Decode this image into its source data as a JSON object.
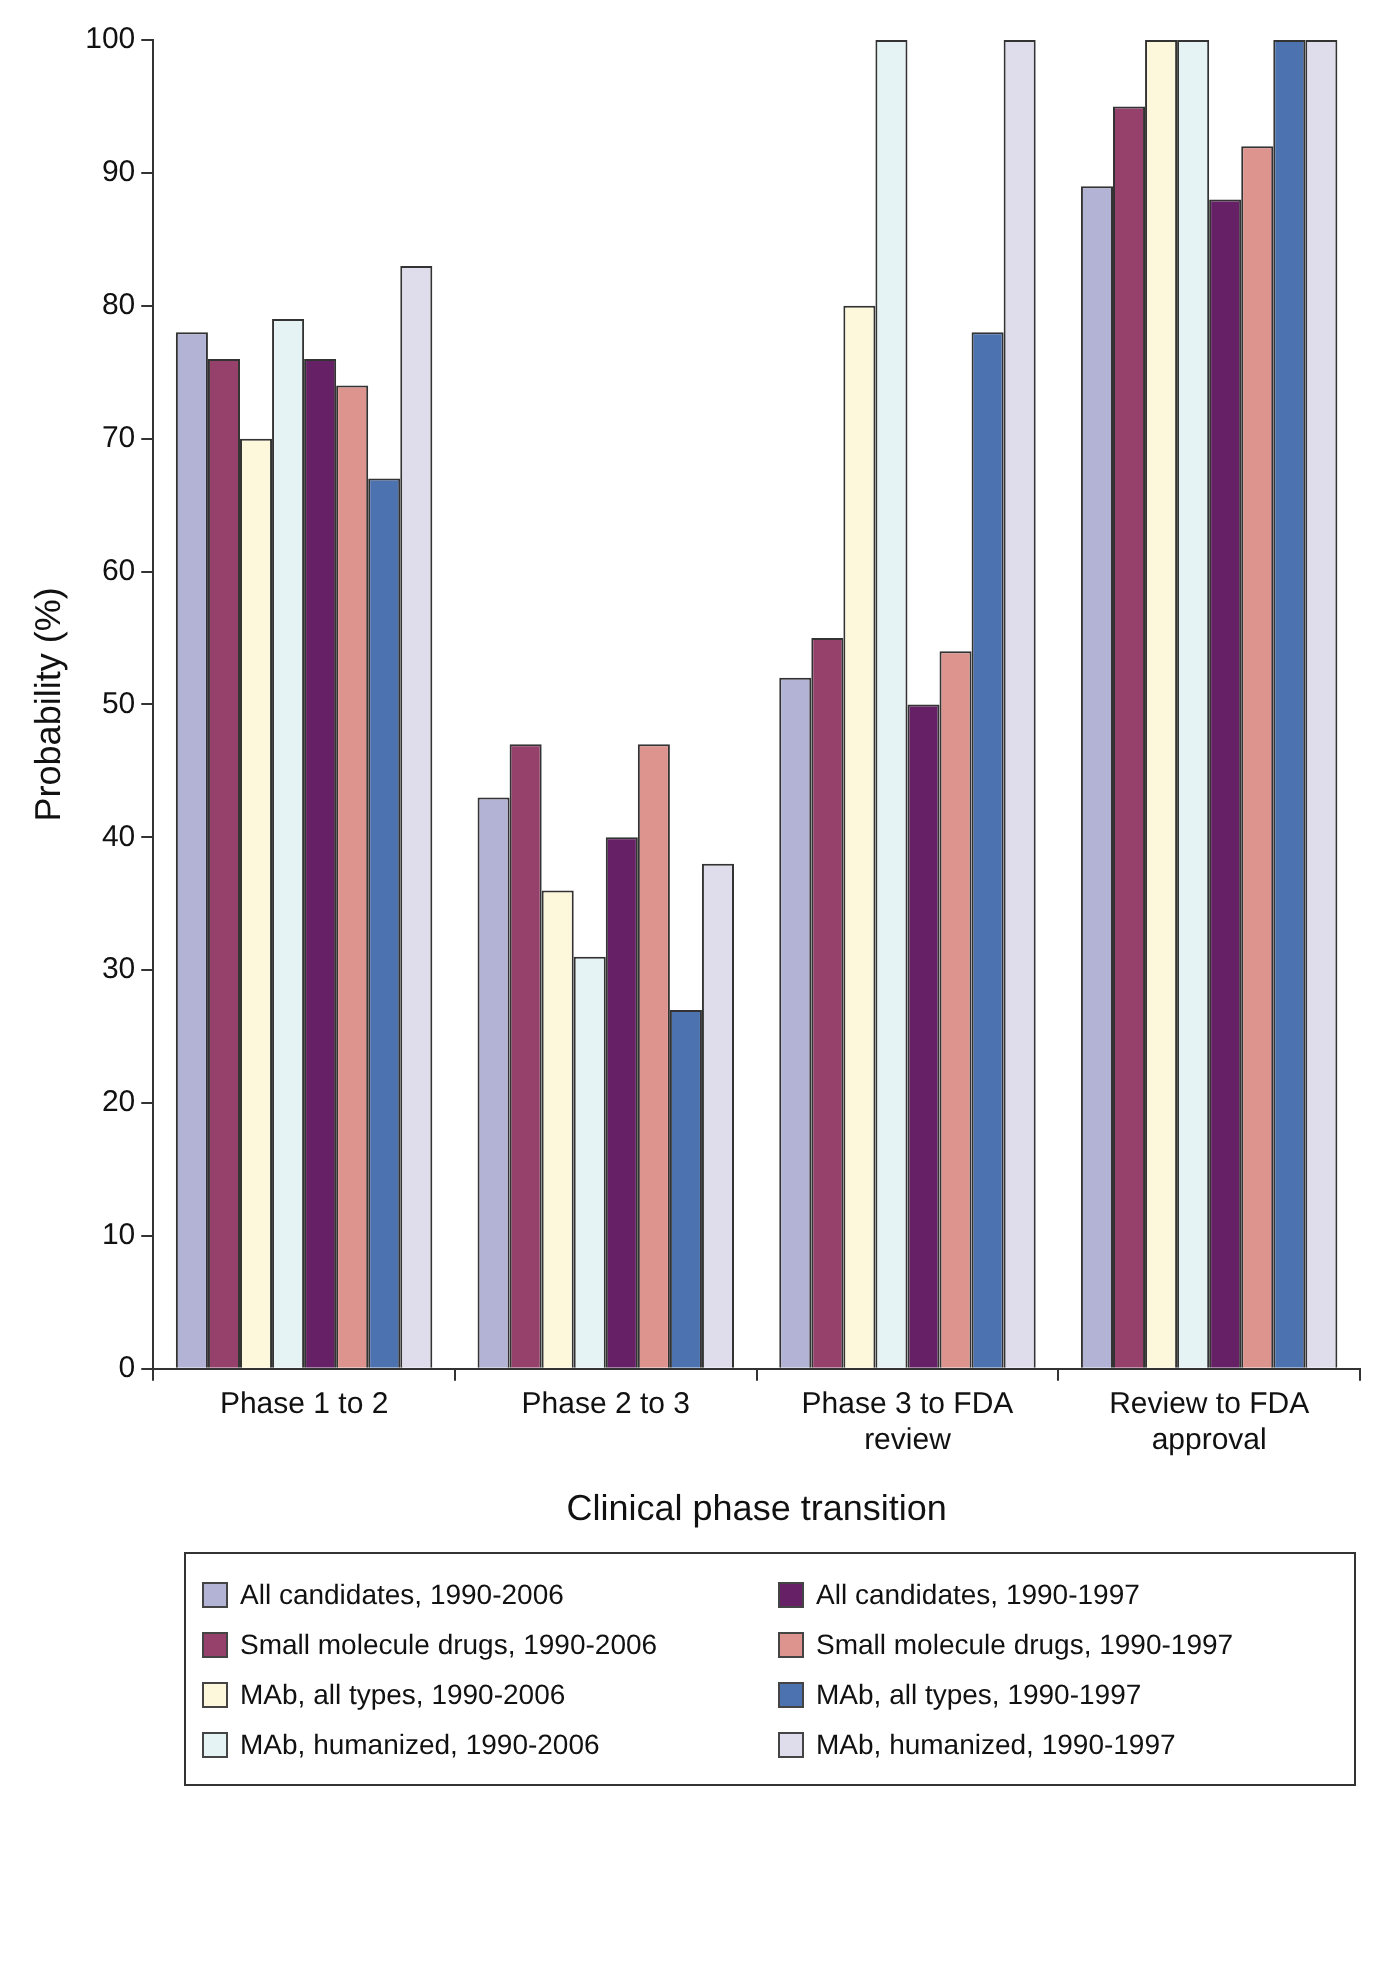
{
  "chart_data": {
    "type": "bar",
    "xlabel": "Clinical phase transition",
    "ylabel": "Probability (%)",
    "categories": [
      "Phase 1 to 2",
      "Phase 2 to 3",
      "Phase 3 to FDA review",
      "Review to FDA approval"
    ],
    "series": [
      {
        "name": "All candidates, 1990-2006",
        "color": "#b3b3d6",
        "values": [
          78,
          43,
          52,
          89
        ]
      },
      {
        "name": "Small molecule drugs, 1990-2006",
        "color": "#96406c",
        "values": [
          76,
          47,
          55,
          95
        ]
      },
      {
        "name": "MAb, all types, 1990-2006",
        "color": "#fdf8dc",
        "values": [
          70,
          36,
          80,
          100
        ]
      },
      {
        "name": "MAb, humanized, 1990-2006",
        "color": "#e6f3f4",
        "values": [
          79,
          31,
          100,
          100
        ]
      },
      {
        "name": "All candidates, 1990-1997",
        "color": "#662066",
        "values": [
          76,
          40,
          50,
          88
        ]
      },
      {
        "name": "Small molecule drugs, 1990-1997",
        "color": "#dd948f",
        "values": [
          74,
          47,
          54,
          92
        ]
      },
      {
        "name": "MAb, all types, 1990-1997",
        "color": "#4c72b0",
        "values": [
          67,
          27,
          78,
          100
        ]
      },
      {
        "name": "MAb, humanized, 1990-1997",
        "color": "#dfdcec",
        "values": [
          83,
          38,
          100,
          100
        ]
      }
    ],
    "ylim": [
      0,
      100
    ],
    "yticks": [
      0,
      10,
      20,
      30,
      40,
      50,
      60,
      70,
      80,
      90,
      100
    ],
    "grid": false,
    "legend": "bottom"
  }
}
